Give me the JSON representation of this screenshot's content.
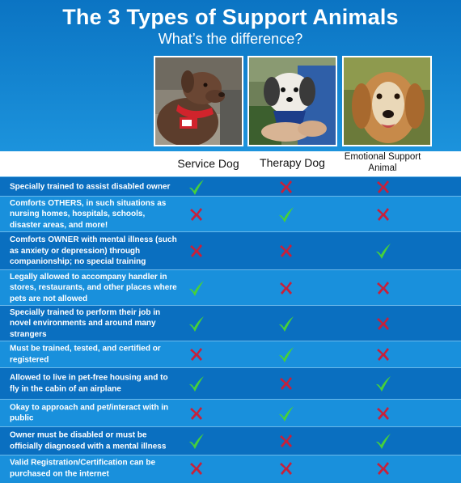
{
  "title": "The 3 Types of Support Animals",
  "subtitle": "What’s the difference?",
  "columns": [
    {
      "label": "Service Dog"
    },
    {
      "label": "Therapy Dog"
    },
    {
      "label": "Emotional Support Animal"
    }
  ],
  "icons": {
    "yes": "green-check-icon",
    "no": "red-x-icon"
  },
  "colors": {
    "check": "#46d13a",
    "cross": "#c8203a",
    "row_dark": "#0a6fc0",
    "row_light": "#1990dc"
  },
  "rows": [
    {
      "label": "Specially trained to assist disabled owner",
      "values": [
        "yes",
        "no",
        "no"
      ]
    },
    {
      "label": "Comforts OTHERS, in such situations as nursing homes, hospitals, schools, disaster areas, and more!",
      "values": [
        "no",
        "yes",
        "no"
      ]
    },
    {
      "label": "Comforts OWNER with mental illness (such as anxiety or depression) through companionship; no special training",
      "values": [
        "no",
        "no",
        "yes"
      ]
    },
    {
      "label": "Legally allowed to accompany handler in stores, restaurants, and other places where pets are not allowed",
      "values": [
        "yes",
        "no",
        "no"
      ]
    },
    {
      "label": "Specially trained to perform their job in novel environments and around many strangers",
      "values": [
        "yes",
        "yes",
        "no"
      ]
    },
    {
      "label": "Must be trained, tested, and certified or registered",
      "values": [
        "no",
        "yes",
        "no"
      ]
    },
    {
      "label": "Allowed to live in pet-free housing and to fly in the cabin of an airplane",
      "values": [
        "yes",
        "no",
        "yes"
      ]
    },
    {
      "label": "Okay to approach and pet/interact with in public",
      "values": [
        "no",
        "yes",
        "no"
      ]
    },
    {
      "label": "Owner must be disabled or must be officially diagnosed with a mental illness",
      "values": [
        "yes",
        "no",
        "yes"
      ]
    },
    {
      "label": "Valid Registration/Certification can be purchased on the internet",
      "values": [
        "no",
        "no",
        "no"
      ]
    }
  ]
}
